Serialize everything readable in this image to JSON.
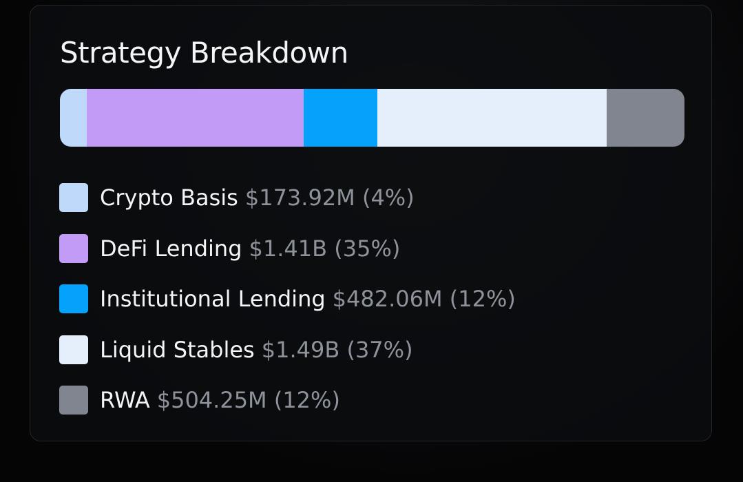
{
  "chart_data": {
    "type": "stacked-bar",
    "title": "Strategy Breakdown",
    "series": [
      {
        "name": "Crypto Basis",
        "color": "#bfd9fb",
        "values": [
          173920000
        ],
        "value_labels": [
          "$173.92M (4%)"
        ]
      },
      {
        "name": "DeFi Lending",
        "color": "#c29bf7",
        "values": [
          1410000000
        ],
        "value_labels": [
          "$1.41B (35%)"
        ]
      },
      {
        "name": "Institutional Lending",
        "color": "#05a2fb",
        "values": [
          482060000
        ],
        "value_labels": [
          "$482.06M (12%)"
        ]
      },
      {
        "name": "Liquid Stables",
        "color": "#e5eefb",
        "values": [
          1490000000
        ],
        "value_labels": [
          "$1.49B (37%)"
        ]
      },
      {
        "name": "RWA",
        "color": "#80858f",
        "values": [
          504250000
        ],
        "value_labels": [
          "$504.25M (12%)"
        ]
      }
    ]
  }
}
